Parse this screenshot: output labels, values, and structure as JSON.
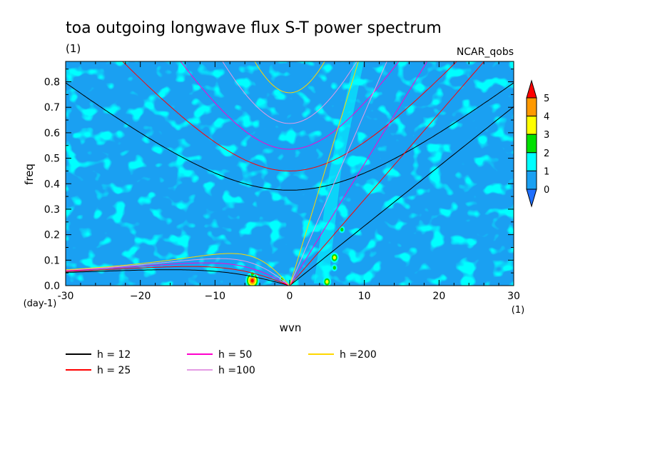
{
  "chart_data": {
    "type": "heatmap",
    "title": "toa outgoing longwave flux S-T power spectrum",
    "units_label": "(1)",
    "source_label": "NCAR_qobs",
    "xlabel": "wvn",
    "ylabel": "freq",
    "x_units": "(1)",
    "y_units": "(day-1)",
    "xlim": [
      -30,
      30
    ],
    "ylim": [
      0,
      0.88
    ],
    "x_ticks": [
      -30,
      -20,
      -10,
      0,
      10,
      20,
      30
    ],
    "x_tick_labels": [
      "-30",
      "−20",
      "−10",
      "0",
      "10",
      "20",
      "30"
    ],
    "y_ticks": [
      0.0,
      0.1,
      0.2,
      0.3,
      0.4,
      0.5,
      0.6,
      0.7,
      0.8
    ],
    "y_tick_labels": [
      "0.0",
      "0.1",
      "0.2",
      "0.3",
      "0.4",
      "0.5",
      "0.6",
      "0.7",
      "0.8"
    ],
    "colorbar": {
      "levels": [
        "0",
        "1",
        "2",
        "3",
        "4",
        "5"
      ],
      "colors": [
        "#1f6fff",
        "#1aa0f2",
        "#00ffff",
        "#00e000",
        "#ffff00",
        "#ff9900",
        "#ff0000"
      ]
    },
    "background_level_color": "#1aa0f2",
    "hotspots": [
      {
        "wvn": -5,
        "freq": 0.02,
        "level": 5
      },
      {
        "wvn": -5,
        "freq": 0.045,
        "level": 2
      },
      {
        "wvn": -1,
        "freq": 0.025,
        "level": 2
      },
      {
        "wvn": 5,
        "freq": 0.015,
        "level": 3
      },
      {
        "wvn": 6,
        "freq": 0.11,
        "level": 3
      },
      {
        "wvn": 6,
        "freq": 0.07,
        "level": 2
      },
      {
        "wvn": 7,
        "freq": 0.22,
        "level": 2
      }
    ],
    "dispersion_curves": [
      {
        "name": "h = 12",
        "h": 12,
        "color": "#000000"
      },
      {
        "name": "h = 25",
        "h": 25,
        "color": "#ff0000"
      },
      {
        "name": "h = 50",
        "h": 50,
        "color": "#ff00cc"
      },
      {
        "name": "h =100",
        "h": 100,
        "color": "#e49be4"
      },
      {
        "name": "h =200",
        "h": 200,
        "color": "#ffd700"
      }
    ]
  }
}
